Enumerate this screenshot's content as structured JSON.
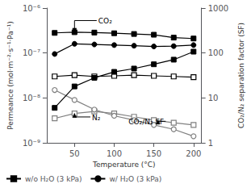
{
  "chart_data": {
    "type": "line",
    "log": "y",
    "xlabel": "Temperature (°C)",
    "ylabel": "Permeance (mol·m⁻²·s⁻¹·Pa⁻¹)",
    "y2label": "CO₂/N₂ separation factor (SF)",
    "x": [
      25,
      50,
      75,
      100,
      125,
      150,
      175,
      200
    ],
    "xlim": [
      15,
      210
    ],
    "xticks": [
      50,
      100,
      150,
      200
    ],
    "ylim": [
      1e-09,
      1e-06
    ],
    "yticks": [
      {
        "value": 1e-09,
        "label": "10⁻⁹"
      },
      {
        "value": 1e-08,
        "label": "10⁻⁸"
      },
      {
        "value": 1e-07,
        "label": "10⁻⁷"
      },
      {
        "value": 1e-06,
        "label": "10⁻⁶"
      }
    ],
    "y2lim": [
      1,
      1000
    ],
    "y2ticks": [
      1,
      10,
      100,
      1000
    ],
    "grid": false,
    "legend": "lower left",
    "series": [
      {
        "name": "w/o H₂O (3 kPa)",
        "color": "black",
        "marker": "square",
        "values": [
          2.8e-07,
          2.9e-07,
          2.85e-07,
          2.75e-07,
          2.65e-07,
          2.55e-07,
          2.2e-07,
          2.1e-07
        ]
      },
      {
        "name": "w/ H₂O (3 kPa)",
        "color": "black",
        "marker": "circle",
        "values": [
          9.5e-08,
          1.6e-07,
          1.55e-07,
          1.5e-07,
          1.45e-07,
          1.4e-07,
          1.42e-07,
          1.5e-07
        ]
      },
      {
        "color": "gray",
        "marker": "open-square",
        "values": [
          3.5e-09,
          4.5e-09,
          5e-09,
          4.5e-09,
          3.8e-09,
          3.2e-09,
          2.8e-09,
          2.5e-09
        ]
      },
      {
        "color": "gray",
        "marker": "open-circle",
        "values": [
          1.5e-08,
          9e-09,
          5.5e-09,
          4e-09,
          3.2e-09,
          2.5e-09,
          2e-09,
          1.4e-09
        ]
      },
      {
        "color": "black",
        "marker": "open-square",
        "axis": "y2",
        "values": [
          30,
          32,
          30,
          31,
          32,
          31,
          30,
          29
        ]
      },
      {
        "color": "black",
        "marker": "square",
        "axis": "y2",
        "values": [
          6,
          18,
          28,
          38,
          45,
          56,
          71,
          107
        ]
      }
    ],
    "annotations": [
      {
        "text": "CO₂",
        "x": 80,
        "y": 4.2e-07,
        "target": [
          50,
          2.9e-07
        ]
      },
      {
        "text": "N₂",
        "x": 72,
        "y": 3e-09,
        "target": [
          50,
          4.5e-09
        ]
      },
      {
        "text": "CO₂/N₂ SF",
        "x": 118,
        "y": 2.4e-09,
        "target": [
          155,
          3.2e-09
        ]
      }
    ]
  }
}
